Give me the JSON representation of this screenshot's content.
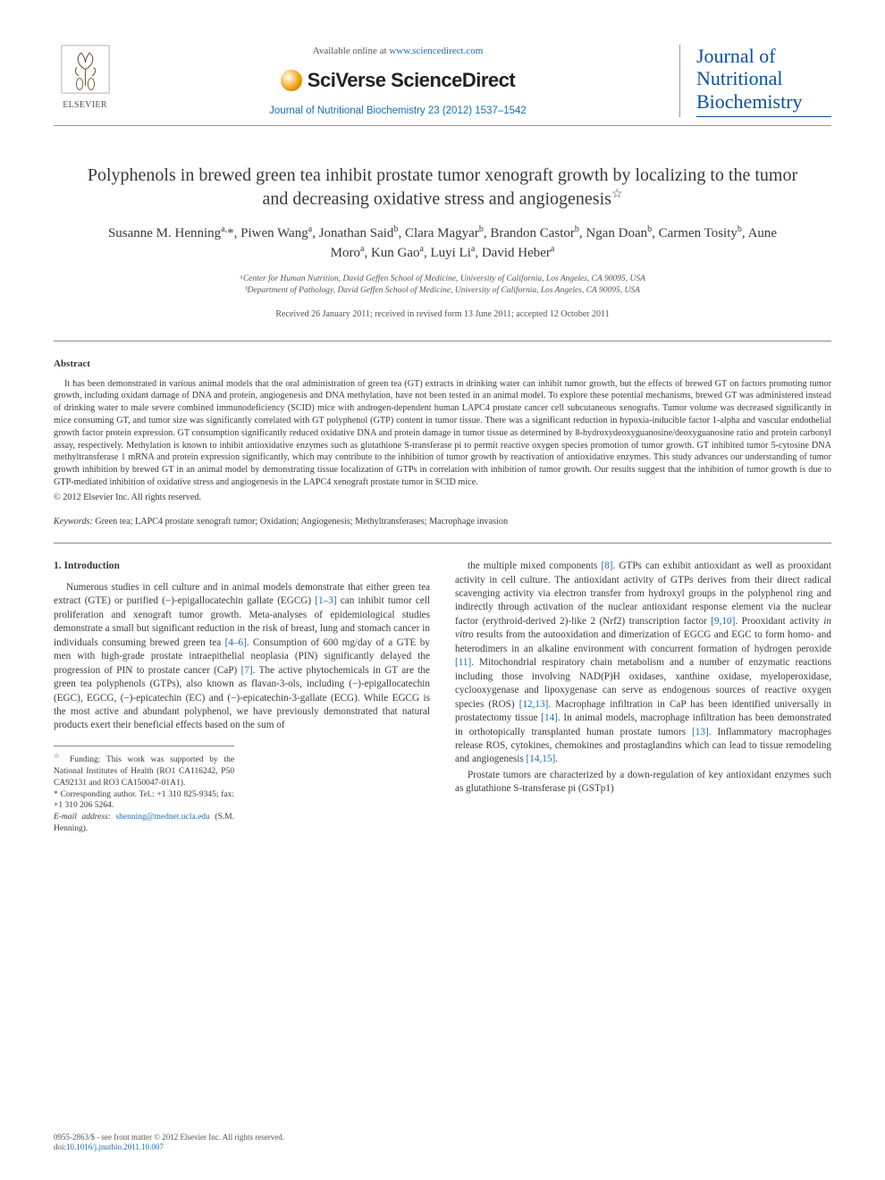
{
  "colors": {
    "link": "#1a6db5",
    "journal_blue": "#0a4fa3",
    "text": "#3a3a3a",
    "muted": "#555555",
    "rule": "#888888"
  },
  "header": {
    "publisher_label": "ELSEVIER",
    "available_prefix": "Available online at ",
    "available_url": "www.sciencedirect.com",
    "platform_brand": "SciVerse ScienceDirect",
    "journal_ref": "Journal of Nutritional Biochemistry 23 (2012) 1537–1542",
    "journal_logo_line1": "Journal of",
    "journal_logo_line2": "Nutritional",
    "journal_logo_line3": "Biochemistry"
  },
  "article": {
    "title": "Polyphenols in brewed green tea inhibit prostate tumor xenograft growth by localizing to the tumor and decreasing oxidative stress and angiogenesis",
    "title_note_symbol": "☆",
    "authors_html": "Susanne M. Henning<sup>a,</sup>*, Piwen Wang<sup>a</sup>, Jonathan Said<sup>b</sup>, Clara Magyar<sup>b</sup>, Brandon Castor<sup>b</sup>, Ngan Doan<sup>b</sup>, Carmen Tosity<sup>b</sup>, Aune Moro<sup>a</sup>, Kun Gao<sup>a</sup>, Luyi Li<sup>a</sup>, David Heber<sup>a</sup>",
    "affil_a": "ᵃCenter for Human Nutrition, David Geffen School of Medicine, University of California, Los Angeles, CA 90095, USA",
    "affil_b": "ᵇDepartment of Pathology, David Geffen School of Medicine, University of California, Los Angeles, CA 90095, USA",
    "dates": "Received 26 January 2011; received in revised form 13 June 2011; accepted 12 October 2011"
  },
  "abstract": {
    "heading": "Abstract",
    "body": "It has been demonstrated in various animal models that the oral administration of green tea (GT) extracts in drinking water can inhibit tumor growth, but the effects of brewed GT on factors promoting tumor growth, including oxidant damage of DNA and protein, angiogenesis and DNA methylation, have not been tested in an animal model. To explore these potential mechanisms, brewed GT was administered instead of drinking water to male severe combined immunodeficiency (SCID) mice with androgen-dependent human LAPC4 prostate cancer cell subcutaneous xenografts. Tumor volume was decreased significantly in mice consuming GT, and tumor size was significantly correlated with GT polyphenol (GTP) content in tumor tissue. There was a significant reduction in hypoxia-inducible factor 1-alpha and vascular endothelial growth factor protein expression. GT consumption significantly reduced oxidative DNA and protein damage in tumor tissue as determined by 8-hydroxydeoxyguanosine/deoxyguanosine ratio and protein carbonyl assay, respectively. Methylation is known to inhibit antioxidative enzymes such as glutathione S-transferase pi to permit reactive oxygen species promotion of tumor growth. GT inhibited tumor 5-cytosine DNA methyltransferase 1 mRNA and protein expression significantly, which may contribute to the inhibition of tumor growth by reactivation of antioxidative enzymes. This study advances our understanding of tumor growth inhibition by brewed GT in an animal model by demonstrating tissue localization of GTPs in correlation with inhibition of tumor growth. Our results suggest that the inhibition of tumor growth is due to GTP-mediated inhibition of oxidative stress and angiogenesis in the LAPC4 xenograft prostate tumor in SCID mice.",
    "copyright": "© 2012 Elsevier Inc. All rights reserved."
  },
  "keywords": {
    "label": "Keywords:",
    "text": " Green tea; LAPC4 prostate xenograft tumor; Oxidation; Angiogenesis; Methyltransferases; Macrophage invasion"
  },
  "body": {
    "section1_head": "1. Introduction",
    "para1": "Numerous studies in cell culture and in animal models demonstrate that either green tea extract (GTE) or purified (−)-epigallocatechin gallate (EGCG) [1–3] can inhibit tumor cell proliferation and xenograft tumor growth. Meta-analyses of epidemiological studies demonstrate a small but significant reduction in the risk of breast, lung and stomach cancer in individuals consuming brewed green tea [4–6]. Consumption of 600 mg/day of a GTE by men with high-grade prostate intraepithelial neoplasia (PIN) significantly delayed the progression of PIN to prostate cancer (CaP) [7]. The active phytochemicals in GT are the green tea polyphenols (GTPs), also known as flavan-3-ols, including (−)-epigallocatechin (EGC), EGCG, (−)-epicatechin (EC) and (−)-epicatechin-3-gallate (ECG). While EGCG is the most active and abundant polyphenol, we have previously demonstrated that natural products exert their beneficial effects based on the sum of",
    "para2": "the multiple mixed components [8]. GTPs can exhibit antioxidant as well as prooxidant activity in cell culture. The antioxidant activity of GTPs derives from their direct radical scavenging activity via electron transfer from hydroxyl groups in the polyphenol ring and indirectly through activation of the nuclear antioxidant response element via the nuclear factor (erythroid-derived 2)-like 2 (Nrf2) transcription factor [9,10]. Prooxidant activity in vitro results from the autooxidation and dimerization of EGCG and EGC to form homo- and heterodimers in an alkaline environment with concurrent formation of hydrogen peroxide [11]. Mitochondrial respiratory chain metabolism and a number of enzymatic reactions including those involving NAD(P)H oxidases, xanthine oxidase, myeloperoxidase, cyclooxygenase and lipoxygenase can serve as endogenous sources of reactive oxygen species (ROS) [12,13]. Macrophage infiltration in CaP has been identified universally in prostatectomy tissue [14]. In animal models, macrophage infiltration has been demonstrated in orthotopically transplanted human prostate tumors [13]. Inflammatory macrophages release ROS, cytokines, chemokines and prostaglandins which can lead to tissue remodeling and angiogenesis [14,15].",
    "para3": "Prostate tumors are characterized by a down-regulation of key antioxidant enzymes such as glutathione S-transferase pi (GSTp1)"
  },
  "footnotes": {
    "funding_symbol": "☆",
    "funding": " Funding: This work was supported by the National Institutes of Health (RO1 CA116242, P50 CA92131 and RO3 CA150047-01A1).",
    "corr_symbol": "*",
    "corr": " Corresponding author. Tel.: +1 310 825-9345; fax: +1 310 206 5264.",
    "email_label": "E-mail address:",
    "email": "shenning@mednet.ucla.edu",
    "email_suffix": " (S.M. Henning)."
  },
  "footer": {
    "line1": "0955-2863/$ - see front matter © 2012 Elsevier Inc. All rights reserved.",
    "doi_label": "doi:",
    "doi": "10.1016/j.jnutbio.2011.10.007"
  }
}
